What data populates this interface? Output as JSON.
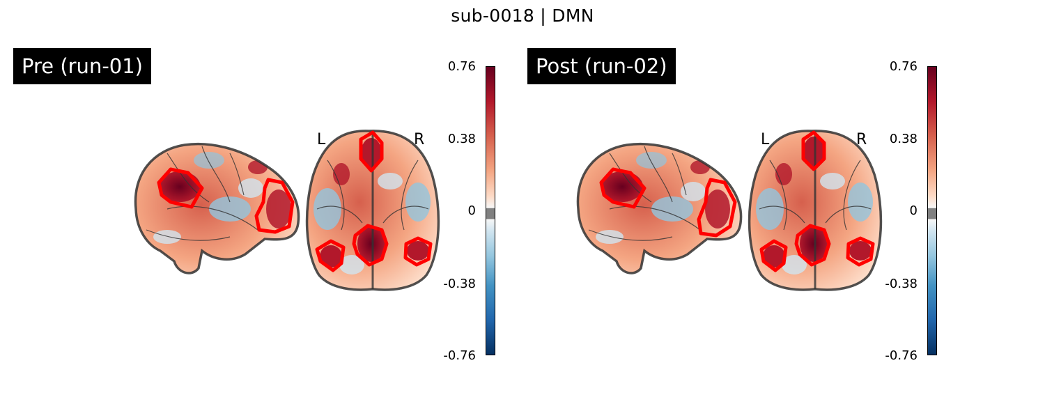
{
  "figure": {
    "title": "sub-0018 | DMN"
  },
  "panels": [
    {
      "label": "Pre (run-01)",
      "left_marker": "L",
      "right_marker": "R"
    },
    {
      "label": "Post (run-02)",
      "left_marker": "L",
      "right_marker": "R"
    }
  ],
  "colorbar": {
    "ticks": [
      "0.76",
      "0.38",
      "0",
      "-0.38",
      "-0.76"
    ],
    "range": [
      -0.76,
      0.76
    ],
    "colormap": "RdBu_r",
    "threshold_color": "#808080"
  },
  "colors": {
    "roi_outline": "#ff0000",
    "brain_outline": "#333333",
    "positive": "#b2182b",
    "negative": "#2166ac"
  }
}
